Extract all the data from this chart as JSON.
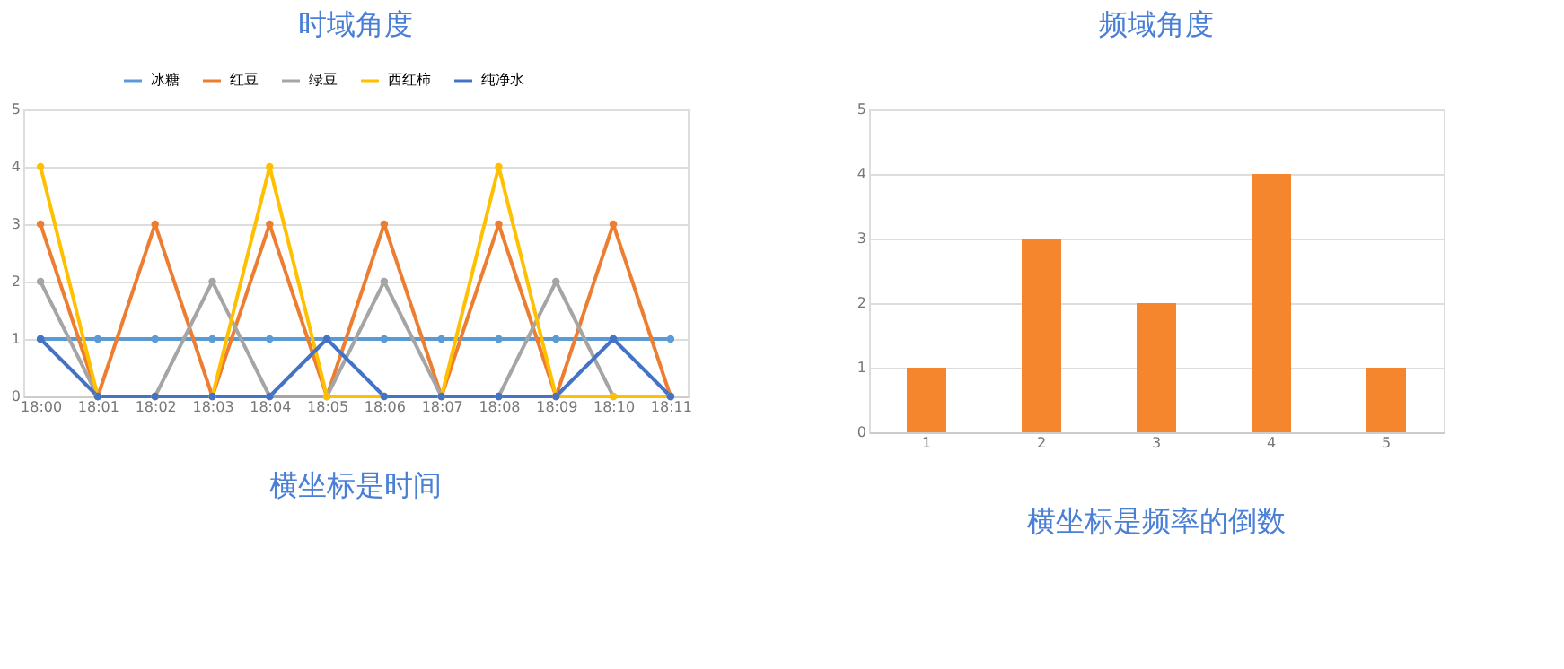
{
  "chart_data": [
    {
      "type": "line",
      "title": "时域角度",
      "annotations": [
        "横坐标是时间"
      ],
      "categories": [
        "18:00",
        "18:01",
        "18:02",
        "18:03",
        "18:04",
        "18:05",
        "18:06",
        "18:07",
        "18:08",
        "18:09",
        "18:10",
        "18:11"
      ],
      "series": [
        {
          "name": "冰糖",
          "color": "#5b9bd5",
          "values": [
            1,
            1,
            1,
            1,
            1,
            1,
            1,
            1,
            1,
            1,
            1,
            1
          ]
        },
        {
          "name": "红豆",
          "color": "#ed7d31",
          "values": [
            3,
            0,
            3,
            0,
            3,
            0,
            3,
            0,
            3,
            0,
            3,
            0
          ]
        },
        {
          "name": "绿豆",
          "color": "#a5a5a5",
          "values": [
            2,
            0,
            0,
            2,
            0,
            0,
            2,
            0,
            0,
            2,
            0,
            0
          ]
        },
        {
          "name": "西红柿",
          "color": "#ffc000",
          "values": [
            4,
            0,
            0,
            0,
            4,
            0,
            0,
            0,
            4,
            0,
            0,
            0
          ]
        },
        {
          "name": "纯净水",
          "color": "#4472c4",
          "values": [
            1,
            0,
            0,
            0,
            0,
            1,
            0,
            0,
            0,
            0,
            1,
            0
          ]
        }
      ],
      "ylim": [
        0,
        5
      ],
      "yticks": [
        0,
        1,
        2,
        3,
        4,
        5
      ],
      "grid": "y",
      "legend": "top",
      "marker": "circle",
      "line_style": "solid"
    },
    {
      "type": "bar",
      "title": "频域角度",
      "annotations": [
        "横坐标是频率的倒数"
      ],
      "categories": [
        "1",
        "2",
        "3",
        "4",
        "5"
      ],
      "values": [
        1,
        3,
        2,
        4,
        1
      ],
      "color": "#f5862e",
      "ylim": [
        0,
        5
      ],
      "yticks": [
        0,
        1,
        2,
        3,
        4,
        5
      ],
      "grid": "y"
    }
  ]
}
